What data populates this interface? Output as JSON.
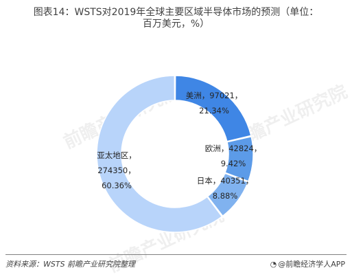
{
  "title_line1": "图表14：WSTS对2019年全球主要区域半导体市场的预测（单位：",
  "title_line2": "百万美元，%）",
  "source": "资料来源：WSTS 前瞻产业研究院整理",
  "brand": "@前瞻经济学人APP",
  "watermark": "前瞻产业研究院",
  "chart_data": {
    "type": "pie",
    "donut": true,
    "slices": [
      {
        "label": "美洲",
        "value": 97021,
        "percent": "21.34%",
        "color": "#3f86e5"
      },
      {
        "label": "欧洲",
        "value": 42824,
        "percent": "9.42%",
        "color": "#5c9be8"
      },
      {
        "label": "日本",
        "value": 40351,
        "percent": "8.88%",
        "color": "#80b2ef"
      },
      {
        "label": "亚太地区",
        "value": 274350,
        "percent": "60.36%",
        "color": "#b8d4fa"
      }
    ]
  }
}
